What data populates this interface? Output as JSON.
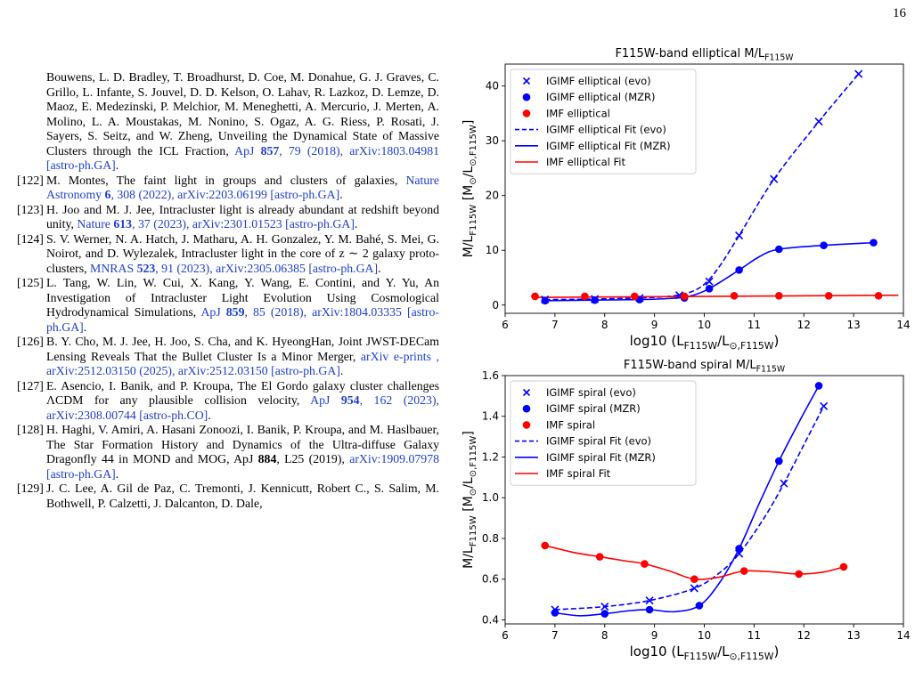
{
  "page_number": "16",
  "references": [
    {
      "num": "",
      "parts": [
        {
          "t": "Bouwens, L. D. Bradley, T. Broadhurst, D. Coe, M. Donahue, G. J. Graves, C. Grillo, L. Infante, S. Jouvel, D. D. Kelson, O. Lahav, R. Lazkoz, D. Lemze, D. Maoz, E. Medezinski, P. Melchior, M. Meneghetti, A. Mercurio, J. Merten, A. Molino, L. A. Moustakas, M. Nonino, S. Ogaz, A. G. Riess, P. Rosati, J. Sayers, S. Seitz, and W. Zheng, Unveiling the Dynamical State of Massive Clusters through the ICL Fraction, "
        },
        {
          "t": "ApJ ",
          "s": "link"
        },
        {
          "t": "857",
          "s": "link bold"
        },
        {
          "t": ", 79 (2018), arXiv:1803.04981 [astro-ph.GA]",
          "s": "link"
        },
        {
          "t": "."
        }
      ]
    },
    {
      "num": "[122]",
      "parts": [
        {
          "t": "M. Montes, The faint light in groups and clusters of galaxies, "
        },
        {
          "t": "Nature Astronomy ",
          "s": "link"
        },
        {
          "t": "6",
          "s": "link bold"
        },
        {
          "t": ", 308 (2022), arXiv:2203.06199 [astro-ph.GA]",
          "s": "link"
        },
        {
          "t": "."
        }
      ]
    },
    {
      "num": "[123]",
      "parts": [
        {
          "t": "H. Joo and M. J. Jee, Intracluster light is already abundant at redshift beyond unity, "
        },
        {
          "t": "Nature ",
          "s": "link"
        },
        {
          "t": "613",
          "s": "link bold"
        },
        {
          "t": ", 37 (2023), arXiv:2301.01523 [astro-ph.GA]",
          "s": "link"
        },
        {
          "t": "."
        }
      ]
    },
    {
      "num": "[124]",
      "parts": [
        {
          "t": "S. V. Werner, N. A. Hatch, J. Matharu, A. H. Gonzalez, Y. M. Bahé, S. Mei, G. Noirot, and D. Wylezalek, Intracluster light in the core of z ∼ 2 galaxy proto-clusters, "
        },
        {
          "t": "MNRAS ",
          "s": "link"
        },
        {
          "t": "523",
          "s": "link bold"
        },
        {
          "t": ", 91 (2023), arXiv:2305.06385 [astro-ph.GA]",
          "s": "link"
        },
        {
          "t": "."
        }
      ]
    },
    {
      "num": "[125]",
      "parts": [
        {
          "t": "L. Tang, W. Lin, W. Cui, X. Kang, Y. Wang, E. Contini, and Y. Yu, An Investigation of Intracluster Light Evolution Using Cosmological Hydrodynamical Simulations, "
        },
        {
          "t": "ApJ ",
          "s": "link"
        },
        {
          "t": "859",
          "s": "link bold"
        },
        {
          "t": ", 85 (2018), arXiv:1804.03335 [astro-ph.GA]",
          "s": "link"
        },
        {
          "t": "."
        }
      ]
    },
    {
      "num": "[126]",
      "parts": [
        {
          "t": "B. Y. Cho, M. J. Jee, H. Joo, S. Cha, and K. HyeongHan, Joint JWST-DECam Lensing Reveals That the Bullet Cluster Is a Minor Merger, "
        },
        {
          "t": "arXiv e-prints , arXiv:2512.03150 (2025), arXiv:2512.03150 [astro-ph.GA]",
          "s": "link"
        },
        {
          "t": "."
        }
      ]
    },
    {
      "num": "[127]",
      "parts": [
        {
          "t": "E. Asencio, I. Banik, and P. Kroupa, The El Gordo galaxy cluster challenges ΛCDM for any plausible collision velocity, "
        },
        {
          "t": "ApJ ",
          "s": "link"
        },
        {
          "t": "954",
          "s": "link bold"
        },
        {
          "t": ", 162 (2023), arXiv:2308.00744 [astro-ph.CO]",
          "s": "link"
        },
        {
          "t": "."
        }
      ]
    },
    {
      "num": "[128]",
      "parts": [
        {
          "t": "H. Haghi, V. Amiri, A. Hasani Zonoozi, I. Banik, P. Kroupa, and M. Haslbauer, The Star Formation History and Dynamics of the Ultra-diffuse Galaxy Dragonfly 44 in MOND and MOG, ApJ "
        },
        {
          "t": "884",
          "s": "bold"
        },
        {
          "t": ", L25 (2019), "
        },
        {
          "t": "arXiv:1909.07978 [astro-ph.GA]",
          "s": "link"
        },
        {
          "t": "."
        }
      ]
    },
    {
      "num": "[129]",
      "parts": [
        {
          "t": "J. C. Lee, A. Gil de Paz, C. Tremonti, J. Kennicutt, Robert C., S. Salim, M. Bothwell, P. Calzetti, J. Dalcanton, D. Dale,"
        }
      ]
    }
  ],
  "colors": {
    "blue": "#0000ff",
    "red": "#ff0000",
    "link": "#1e40cc"
  },
  "chart_data": [
    {
      "type": "line",
      "title": "F115W-band elliptical M/L_F115W",
      "xlabel": "log10 (L_F115W/L_⊙,F115W)",
      "ylabel": "M/L_F115W [M_⊙/L_⊙,F115W]",
      "xlim": [
        6,
        14
      ],
      "ylim": [
        -1.5,
        44
      ],
      "xticks": [
        6,
        7,
        8,
        9,
        10,
        11,
        12,
        13,
        14
      ],
      "yticks": [
        0,
        10,
        20,
        30,
        40
      ],
      "grid": false,
      "legend_position": "top-left",
      "legend": [
        "IGIMF elliptical (evo)",
        "IGIMF elliptical (MZR)",
        "IMF elliptical",
        "IGIMF elliptical Fit (evo)",
        "IGIMF elliptical Fit (MZR)",
        "IMF elliptical Fit"
      ],
      "series": [
        {
          "name": "IGIMF elliptical (evo)",
          "marker": "x",
          "color": "#0000ff",
          "x": [
            6.8,
            7.8,
            8.7,
            9.5,
            10.1,
            10.7,
            11.4,
            12.3,
            13.1
          ],
          "y": [
            1.0,
            1.1,
            1.3,
            1.8,
            4.3,
            12.7,
            23.0,
            33.5,
            42.2
          ]
        },
        {
          "name": "IGIMF elliptical (MZR)",
          "marker": "o",
          "color": "#0000ff",
          "x": [
            6.8,
            7.8,
            8.7,
            9.6,
            10.1,
            10.7,
            11.5,
            12.4,
            13.4
          ],
          "y": [
            0.8,
            0.9,
            1.0,
            1.3,
            3.0,
            6.4,
            10.2,
            10.9,
            11.4
          ]
        },
        {
          "name": "IMF elliptical",
          "marker": "o",
          "color": "#ff0000",
          "x": [
            6.6,
            7.6,
            8.6,
            9.6,
            10.6,
            11.5,
            12.5,
            13.5
          ],
          "y": [
            1.6,
            1.6,
            1.6,
            1.6,
            1.7,
            1.7,
            1.7,
            1.7
          ]
        },
        {
          "name": "IGIMF elliptical Fit (evo)",
          "style": "dashed",
          "color": "#0000ff",
          "x": [
            6.8,
            7.8,
            8.7,
            9.3,
            9.7,
            10.0,
            10.3,
            10.7,
            11.4,
            12.3,
            13.1
          ],
          "y": [
            1.0,
            1.1,
            1.3,
            1.6,
            2.3,
            3.8,
            7.0,
            12.7,
            23.0,
            33.5,
            42.2
          ]
        },
        {
          "name": "IGIMF elliptical Fit (MZR)",
          "style": "solid",
          "color": "#0000ff",
          "x": [
            6.8,
            7.8,
            8.7,
            9.3,
            9.7,
            10.1,
            10.7,
            11.1,
            11.5,
            12.4,
            13.4
          ],
          "y": [
            0.8,
            0.9,
            1.0,
            1.2,
            1.6,
            3.0,
            6.4,
            8.8,
            10.2,
            10.9,
            11.4
          ]
        },
        {
          "name": "IMF elliptical Fit",
          "style": "solid",
          "color": "#ff0000",
          "x": [
            6.6,
            13.9
          ],
          "y": [
            1.4,
            1.8
          ]
        }
      ]
    },
    {
      "type": "line",
      "title": "F115W-band spiral M/L_F115W",
      "xlabel": "log10 (L_F115W/L_⊙,F115W)",
      "ylabel": "M/L_F115W [M_⊙/L_⊙,F115W]",
      "xlim": [
        6,
        14
      ],
      "ylim": [
        0.38,
        1.6
      ],
      "xticks": [
        6,
        7,
        8,
        9,
        10,
        11,
        12,
        13,
        14
      ],
      "yticks": [
        0.4,
        0.6,
        0.8,
        1.0,
        1.2,
        1.4,
        1.6
      ],
      "grid": false,
      "legend_position": "top-left",
      "legend": [
        "IGIMF spiral (evo)",
        "IGIMF spiral (MZR)",
        "IMF spiral",
        "IGIMF spiral Fit (evo)",
        "IGIMF spiral Fit (MZR)",
        "IMF spiral Fit"
      ],
      "series": [
        {
          "name": "IGIMF spiral (evo)",
          "marker": "x",
          "color": "#0000ff",
          "x": [
            7.0,
            8.0,
            8.9,
            9.8,
            10.7,
            11.6,
            12.4
          ],
          "y": [
            0.45,
            0.465,
            0.495,
            0.555,
            0.725,
            1.07,
            1.45
          ]
        },
        {
          "name": "IGIMF spiral (MZR)",
          "marker": "o",
          "color": "#0000ff",
          "x": [
            7.0,
            8.0,
            8.9,
            9.9,
            10.7,
            11.5,
            12.3
          ],
          "y": [
            0.435,
            0.43,
            0.45,
            0.47,
            0.75,
            1.18,
            1.55
          ]
        },
        {
          "name": "IMF spiral",
          "marker": "o",
          "color": "#ff0000",
          "x": [
            6.8,
            7.9,
            8.8,
            9.8,
            10.8,
            11.9,
            12.8
          ],
          "y": [
            0.765,
            0.71,
            0.675,
            0.6,
            0.64,
            0.625,
            0.66
          ]
        },
        {
          "name": "IGIMF spiral Fit (evo)",
          "style": "dashed",
          "color": "#0000ff",
          "x": [
            7.0,
            8.0,
            8.9,
            9.8,
            10.3,
            10.7,
            11.2,
            11.6,
            12.0,
            12.4
          ],
          "y": [
            0.45,
            0.465,
            0.495,
            0.555,
            0.63,
            0.725,
            0.9,
            1.07,
            1.26,
            1.45
          ]
        },
        {
          "name": "IGIMF spiral Fit (MZR)",
          "style": "solid",
          "color": "#0000ff",
          "x": [
            7.0,
            7.5,
            8.0,
            8.5,
            8.9,
            9.4,
            9.9,
            10.3,
            10.7,
            11.1,
            11.5,
            11.9,
            12.3
          ],
          "y": [
            0.435,
            0.42,
            0.43,
            0.445,
            0.45,
            0.44,
            0.47,
            0.58,
            0.75,
            0.97,
            1.18,
            1.37,
            1.55
          ]
        },
        {
          "name": "IMF spiral Fit",
          "style": "solid",
          "color": "#ff0000",
          "x": [
            6.8,
            7.4,
            7.9,
            8.4,
            8.8,
            9.3,
            9.8,
            10.3,
            10.8,
            11.4,
            11.9,
            12.4,
            12.8
          ],
          "y": [
            0.765,
            0.73,
            0.71,
            0.69,
            0.675,
            0.64,
            0.6,
            0.61,
            0.64,
            0.635,
            0.625,
            0.635,
            0.66
          ]
        }
      ]
    }
  ]
}
